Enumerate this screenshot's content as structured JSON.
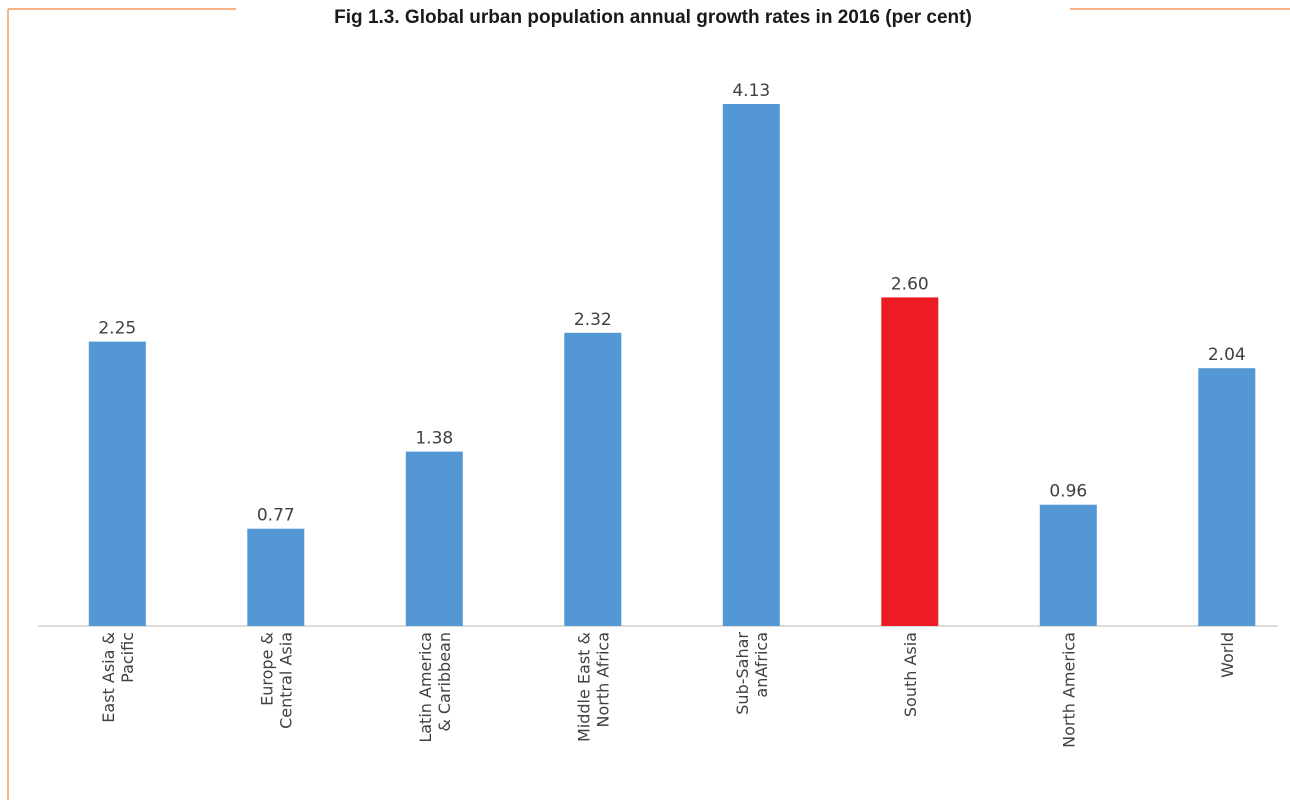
{
  "chart_data": {
    "type": "bar",
    "title": "Fig 1.3. Global urban population annual growth rates in 2016 (per cent)",
    "categories": [
      [
        "East Asia &",
        "Pacific"
      ],
      [
        "Europe &",
        "Central Asia"
      ],
      [
        "Latin America",
        "& Caribbean"
      ],
      [
        "Middle East &",
        "North Africa"
      ],
      [
        "Sub-Sahar",
        "anAfrica"
      ],
      [
        "South Asia"
      ],
      [
        "North America"
      ],
      [
        "World"
      ]
    ],
    "values": [
      2.25,
      0.77,
      1.38,
      2.32,
      4.13,
      2.6,
      0.96,
      2.04
    ],
    "value_labels": [
      "2.25",
      "0.77",
      "1.38",
      "2.32",
      "4.13",
      "2.60",
      "0.96",
      "2.04"
    ],
    "highlight_index": 5,
    "ylim": [
      0,
      4.13
    ],
    "xlabel": "",
    "ylabel": "",
    "grid": false,
    "legend": "none",
    "colors": {
      "bar": "#5398d4",
      "highlight": "#ed1c24",
      "frame": "#f0883e",
      "axis": "#c8c8c8"
    }
  }
}
